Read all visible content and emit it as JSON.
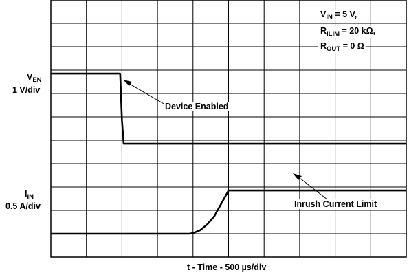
{
  "chart_data": {
    "type": "line",
    "title": "",
    "xlabel": "t - Time - 500 µs/div",
    "x_units": "div",
    "x_divisions": 10,
    "grid": true,
    "conditions": {
      "vin": {
        "main": "V",
        "sub": "IN",
        "rest": " = 5 V,"
      },
      "rilim": {
        "main": "R",
        "sub": "ILIM",
        "rest": " = 20 kΩ,"
      },
      "rout": {
        "main": "R",
        "sub": "OUT",
        "rest": " = 0 Ω"
      }
    },
    "channels": [
      {
        "id": "ven",
        "symbol": {
          "main": "V",
          "sub": "EN"
        },
        "scale": "1 V/div",
        "x": [
          0,
          1.95,
          2.0,
          2.05,
          10
        ],
        "y_div": [
          7.85,
          7.85,
          5.85,
          4.85,
          4.85
        ]
      },
      {
        "id": "iin",
        "symbol": {
          "main": "I",
          "sub": "IN"
        },
        "scale": "0.5 A/div",
        "x": [
          0,
          3.9,
          4.0,
          4.2,
          4.4,
          4.6,
          4.8,
          5.0,
          10
        ],
        "y_div": [
          1.0,
          1.0,
          1.03,
          1.15,
          1.4,
          1.75,
          2.3,
          2.85,
          2.85
        ]
      }
    ],
    "annotations": [
      {
        "text": "Device Enabled",
        "target_channel": "ven"
      },
      {
        "text": "Inrush Current Limit",
        "target_channel": "iin"
      }
    ]
  }
}
